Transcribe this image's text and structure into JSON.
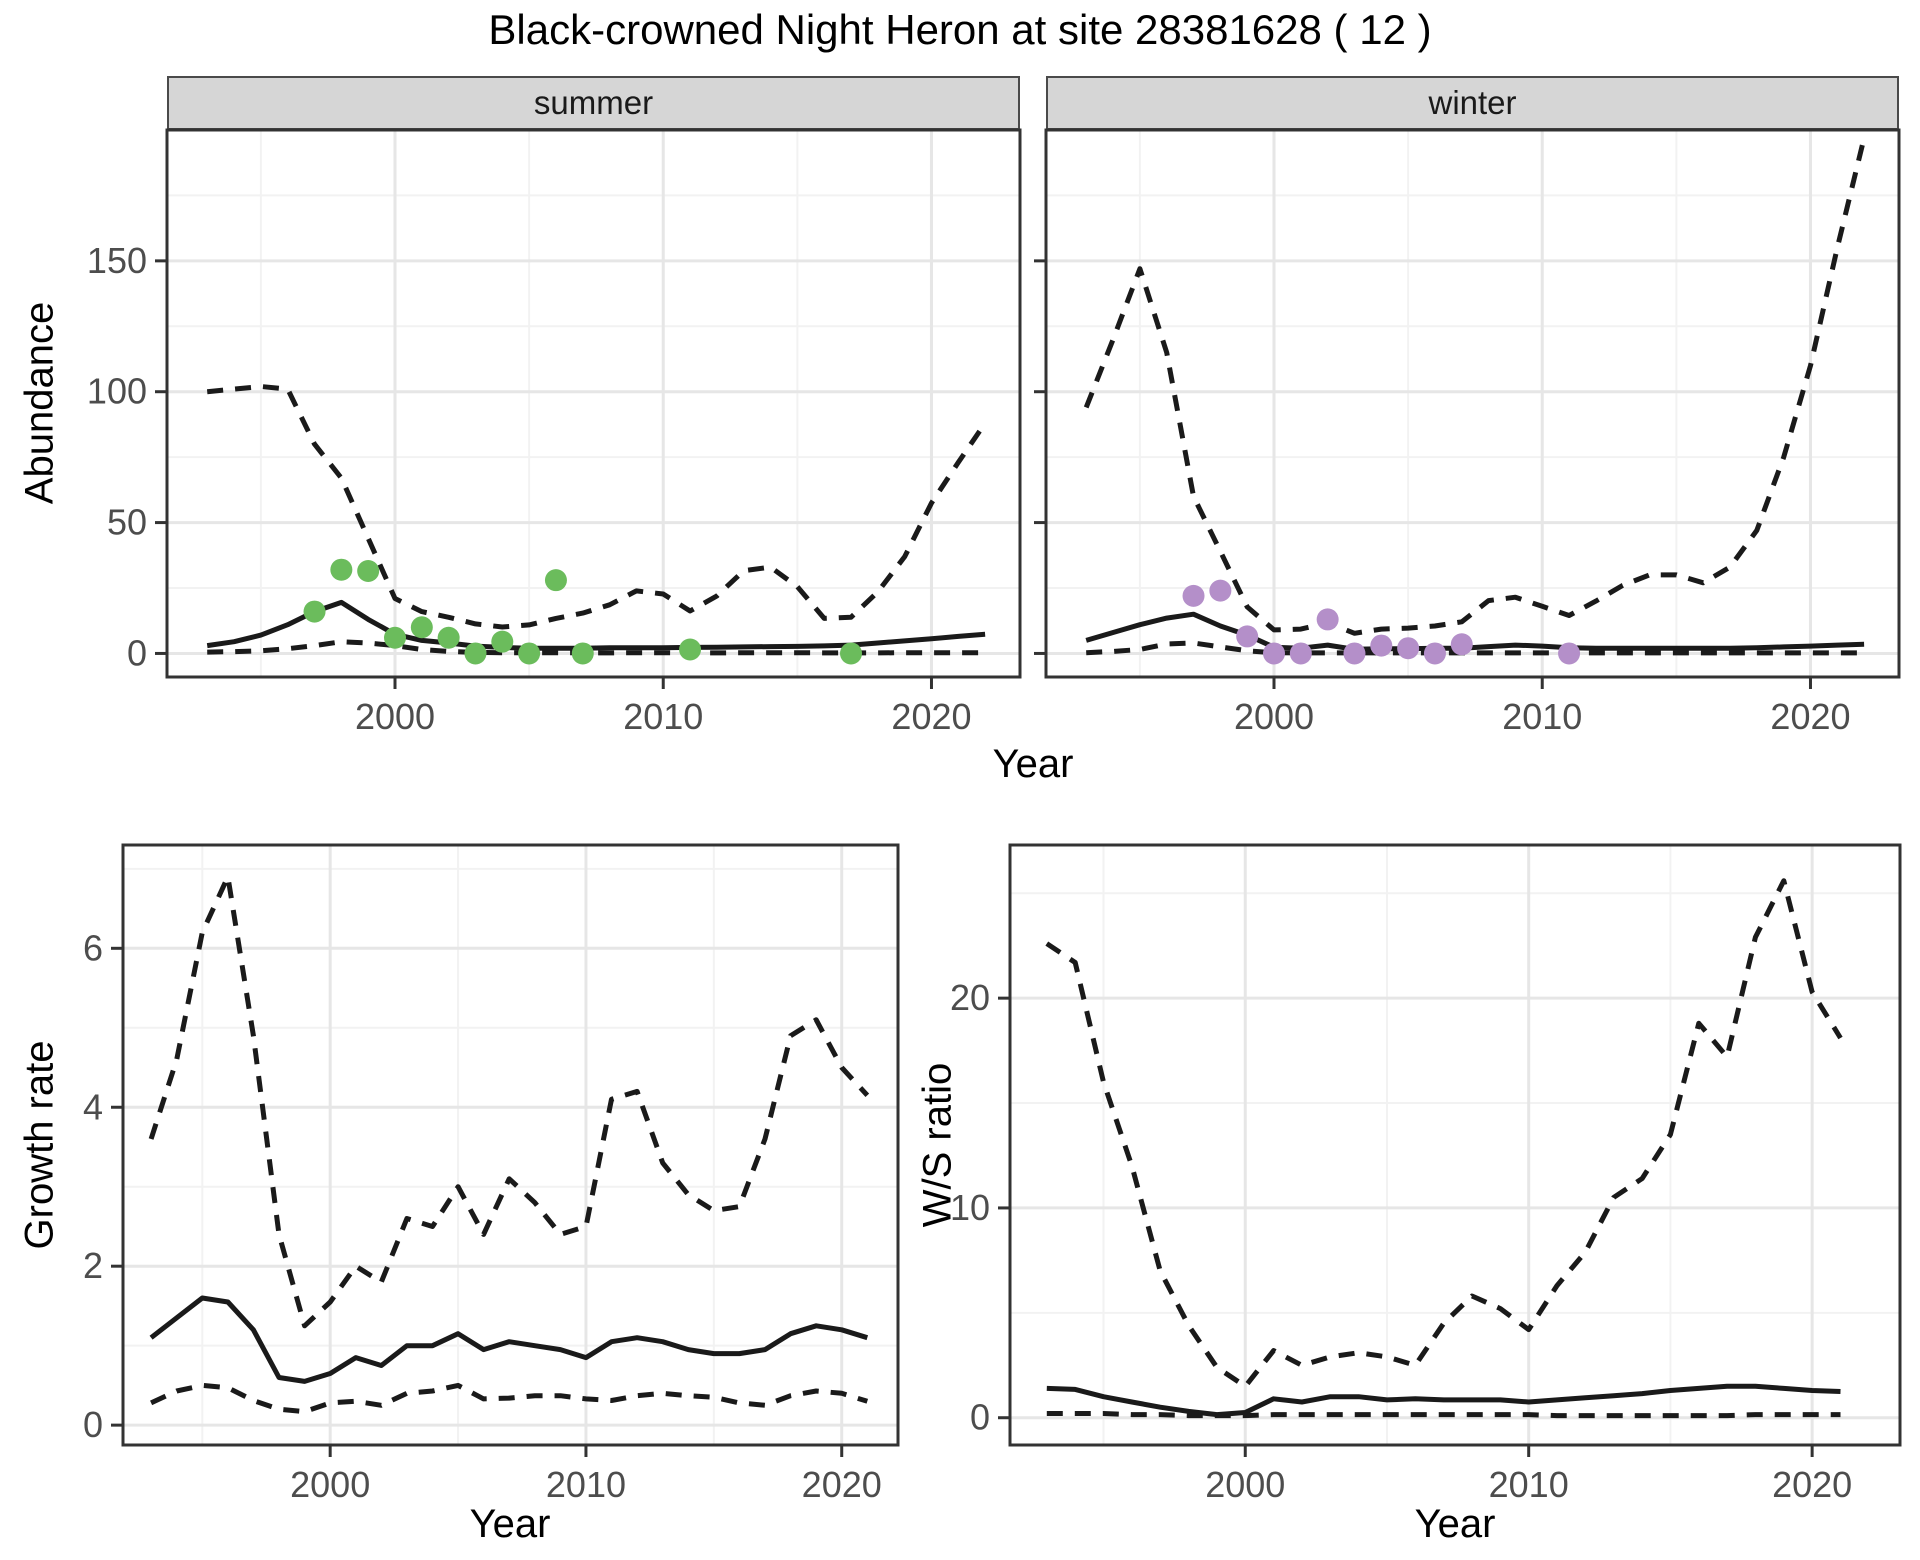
{
  "title": "Black-crowned Night Heron at site 28381628 ( 12 )",
  "axis_titles": {
    "top_y": "Abundance",
    "top_x": "Year",
    "bottom_left_y": "Growth rate",
    "bottom_left_x": "Year",
    "bottom_right_y": "W/S ratio",
    "bottom_right_x": "Year"
  },
  "colors": {
    "summer_points": "#6bbc5c",
    "winter_points": "#b48fc9",
    "line": "#1a1a1a",
    "strip_bg": "#d6d6d6",
    "grid_major": "#e6e6e6",
    "grid_minor": "#f2f2f2",
    "tick_text": "#4d4d4d",
    "panel_border": "#333333"
  },
  "chart_data": {
    "type": "line",
    "title": "Black-crowned Night Heron at site 28381628 ( 12 )",
    "legend": "none",
    "grid": "on",
    "facets": [
      {
        "id": "abundance-summer",
        "facet_label": "summer",
        "ylabel": "Abundance",
        "xlabel": "Year",
        "years": [
          1993,
          1994,
          1995,
          1996,
          1997,
          1998,
          1999,
          2000,
          2001,
          2002,
          2003,
          2004,
          2005,
          2006,
          2007,
          2008,
          2009,
          2010,
          2011,
          2012,
          2013,
          2014,
          2015,
          2016,
          2017,
          2018,
          2019,
          2020,
          2021,
          2022
        ],
        "series": [
          {
            "name": "upper_ci",
            "style": "dashed",
            "values": [
              100,
              101,
              102,
              101,
              80,
              67,
              44,
              21,
              16,
              13.8,
              11.3,
              10.1,
              10.9,
              13.4,
              15.4,
              18.6,
              23.9,
              22.7,
              16.2,
              22,
              31.6,
              33,
              25.5,
              13.4,
              13.8,
              23.5,
              37,
              57.5,
              73,
              88
            ]
          },
          {
            "name": "median",
            "style": "solid",
            "values": [
              3,
              4.5,
              7,
              11,
              16,
              19.5,
              13,
              7.3,
              5,
              4,
              2.8,
              2.3,
              2,
              2,
              2,
              2.2,
              2.2,
              2.2,
              2.3,
              2.4,
              2.5,
              2.6,
              2.7,
              2.9,
              3.2,
              4,
              4.8,
              5.6,
              6.5,
              7.3
            ]
          },
          {
            "name": "lower_ci",
            "style": "dashed",
            "values": [
              0.5,
              0.7,
              1,
              1.8,
              3,
              4.5,
              4,
              3,
              1.5,
              0.8,
              0.4,
              0.3,
              0.3,
              0.3,
              0.2,
              0.2,
              0.3,
              0.3,
              0.2,
              0.2,
              0.3,
              0.3,
              0.3,
              0.2,
              0.2,
              0.2,
              0.3,
              0.3,
              0.3,
              0.3
            ]
          }
        ],
        "points": {
          "name": "observed-summer",
          "color_key": "summer_points",
          "data": [
            [
              1997,
              16
            ],
            [
              1998,
              32
            ],
            [
              1999,
              31.5
            ],
            [
              2000,
              6
            ],
            [
              2001,
              10
            ],
            [
              2002,
              6
            ],
            [
              2003,
              0
            ],
            [
              2004,
              4.5
            ],
            [
              2005,
              0
            ],
            [
              2006,
              28
            ],
            [
              2007,
              0
            ],
            [
              2011,
              1.5
            ],
            [
              2017,
              0
            ]
          ]
        },
        "xlim": [
          1991.5,
          2023.3
        ],
        "ylim": [
          -9,
          200
        ],
        "xticks": [
          2000,
          2010,
          2020
        ],
        "xminor": [
          1995,
          2005,
          2015
        ],
        "yticks": [
          0,
          50,
          100,
          150
        ],
        "yminor": [
          25,
          75,
          125,
          175
        ],
        "show_y_tick_labels": true
      },
      {
        "id": "abundance-winter",
        "facet_label": "winter",
        "ylabel": "Abundance",
        "xlabel": "Year",
        "years": [
          1993,
          1994,
          1995,
          1996,
          1997,
          1998,
          1999,
          2000,
          2001,
          2002,
          2003,
          2004,
          2005,
          2006,
          2007,
          2008,
          2009,
          2010,
          2011,
          2012,
          2013,
          2014,
          2015,
          2016,
          2017,
          2018,
          2019,
          2020,
          2021,
          2022
        ],
        "series": [
          {
            "name": "upper_ci",
            "style": "dashed",
            "values": [
              94,
              120,
              147,
              115,
              60,
              39,
              17.8,
              9,
              9.3,
              11.7,
              7.7,
              9.3,
              9.7,
              10.5,
              12.1,
              20.2,
              21.5,
              18,
              14.5,
              20,
              26,
              30,
              30,
              27,
              33,
              47,
              75,
              110,
              155,
              197
            ]
          },
          {
            "name": "median",
            "style": "solid",
            "values": [
              5,
              8,
              11,
              13.5,
              15,
              10.5,
              7,
              2.4,
              2,
              3.2,
              1.6,
              1.8,
              1.8,
              2,
              2,
              2.6,
              3.2,
              2.8,
              2.2,
              2,
              2,
              2,
              2,
              2,
              2,
              2.2,
              2.5,
              2.8,
              3.2,
              3.5
            ]
          },
          {
            "name": "lower_ci",
            "style": "dashed",
            "values": [
              0.3,
              0.8,
              1.5,
              3.6,
              4,
              2.5,
              1,
              0.3,
              0.2,
              0.2,
              0.2,
              0.2,
              0.2,
              0.2,
              0.2,
              0.2,
              0.2,
              0.2,
              0.2,
              0.2,
              0.2,
              0.2,
              0.2,
              0.2,
              0.2,
              0.2,
              0.2,
              0.2,
              0.2,
              0.2
            ]
          }
        ],
        "points": {
          "name": "observed-winter",
          "color_key": "winter_points",
          "data": [
            [
              1997,
              22
            ],
            [
              1998,
              24
            ],
            [
              1999,
              6.5
            ],
            [
              2000,
              0
            ],
            [
              2001,
              0
            ],
            [
              2002,
              13
            ],
            [
              2003,
              0
            ],
            [
              2004,
              3
            ],
            [
              2005,
              2
            ],
            [
              2006,
              0
            ],
            [
              2007,
              3.5
            ],
            [
              2011,
              0
            ]
          ]
        },
        "xlim": [
          1991.5,
          2023.3
        ],
        "ylim": [
          -9,
          200
        ],
        "xticks": [
          2000,
          2010,
          2020
        ],
        "xminor": [
          1995,
          2005,
          2015
        ],
        "yticks": [
          0,
          50,
          100,
          150
        ],
        "yminor": [
          25,
          75,
          125,
          175
        ],
        "show_y_tick_labels": false
      },
      {
        "id": "growth-rate",
        "facet_label": "",
        "ylabel": "Growth rate",
        "xlabel": "Year",
        "years": [
          1993,
          1994,
          1995,
          1996,
          1997,
          1998,
          1999,
          2000,
          2001,
          2002,
          2003,
          2004,
          2005,
          2006,
          2007,
          2008,
          2009,
          2010,
          2011,
          2012,
          2013,
          2014,
          2015,
          2016,
          2017,
          2018,
          2019,
          2020,
          2021
        ],
        "series": [
          {
            "name": "upper_ci",
            "style": "dashed",
            "values": [
              3.6,
              4.6,
              6.2,
              6.9,
              4.9,
              2.4,
              1.25,
              1.55,
              2.0,
              1.8,
              2.6,
              2.5,
              3.0,
              2.4,
              3.1,
              2.8,
              2.4,
              2.5,
              4.1,
              4.2,
              3.3,
              2.9,
              2.7,
              2.75,
              3.6,
              4.9,
              5.1,
              4.5,
              4.15
            ]
          },
          {
            "name": "median",
            "style": "solid",
            "values": [
              1.1,
              1.35,
              1.6,
              1.55,
              1.2,
              0.6,
              0.55,
              0.65,
              0.85,
              0.75,
              1.0,
              1.0,
              1.15,
              0.95,
              1.05,
              1.0,
              0.95,
              0.85,
              1.05,
              1.1,
              1.05,
              0.95,
              0.9,
              0.9,
              0.95,
              1.15,
              1.25,
              1.2,
              1.1
            ]
          },
          {
            "name": "lower_ci",
            "style": "dashed",
            "values": [
              0.28,
              0.43,
              0.5,
              0.47,
              0.31,
              0.2,
              0.17,
              0.28,
              0.3,
              0.25,
              0.4,
              0.43,
              0.5,
              0.33,
              0.34,
              0.37,
              0.37,
              0.33,
              0.31,
              0.37,
              0.4,
              0.37,
              0.35,
              0.28,
              0.25,
              0.37,
              0.43,
              0.4,
              0.3
            ]
          }
        ],
        "points": null,
        "xlim": [
          1991.9,
          2022.2
        ],
        "ylim": [
          -0.25,
          7.3
        ],
        "xticks": [
          2000,
          2010,
          2020
        ],
        "xminor": [
          1995,
          2005,
          2015
        ],
        "yticks": [
          0,
          2,
          4,
          6
        ],
        "yminor": [
          1,
          3,
          5,
          7
        ],
        "show_y_tick_labels": true
      },
      {
        "id": "ws-ratio",
        "facet_label": "",
        "ylabel": "W/S ratio",
        "xlabel": "Year",
        "years": [
          1993,
          1994,
          1995,
          1996,
          1997,
          1998,
          1999,
          2000,
          2001,
          2002,
          2003,
          2004,
          2005,
          2006,
          2007,
          2008,
          2009,
          2010,
          2011,
          2012,
          2013,
          2014,
          2015,
          2016,
          2017,
          2018,
          2019,
          2020,
          2021
        ],
        "series": [
          {
            "name": "upper_ci",
            "style": "dashed",
            "values": [
              22.6,
              21.7,
              16,
              12,
              7,
              4.4,
              2.4,
              1.5,
              3.2,
              2.5,
              2.9,
              3.1,
              2.9,
              2.5,
              4.5,
              5.8,
              5.2,
              4.2,
              6.3,
              7.9,
              10.5,
              11.4,
              13.5,
              18.8,
              17.2,
              22.9,
              25.6,
              20.3,
              18.1
            ]
          },
          {
            "name": "median",
            "style": "solid",
            "values": [
              1.4,
              1.35,
              1.0,
              0.75,
              0.5,
              0.3,
              0.15,
              0.25,
              0.9,
              0.75,
              1.0,
              1.0,
              0.85,
              0.9,
              0.85,
              0.85,
              0.85,
              0.75,
              0.85,
              0.95,
              1.05,
              1.15,
              1.3,
              1.4,
              1.5,
              1.5,
              1.4,
              1.3,
              1.25
            ]
          },
          {
            "name": "lower_ci",
            "style": "dashed",
            "values": [
              0.2,
              0.2,
              0.2,
              0.15,
              0.15,
              0.1,
              0.1,
              0.1,
              0.15,
              0.15,
              0.15,
              0.15,
              0.15,
              0.15,
              0.15,
              0.15,
              0.15,
              0.15,
              0.1,
              0.1,
              0.1,
              0.1,
              0.1,
              0.1,
              0.1,
              0.15,
              0.15,
              0.15,
              0.15
            ]
          }
        ],
        "points": null,
        "xlim": [
          1991.7,
          2023.1
        ],
        "ylim": [
          -1.3,
          27.3
        ],
        "xticks": [
          2000,
          2010,
          2020
        ],
        "xminor": [
          1995,
          2005,
          2015
        ],
        "yticks": [
          0,
          10,
          20
        ],
        "yminor": [
          5,
          15,
          25
        ],
        "show_y_tick_labels": true
      }
    ]
  }
}
